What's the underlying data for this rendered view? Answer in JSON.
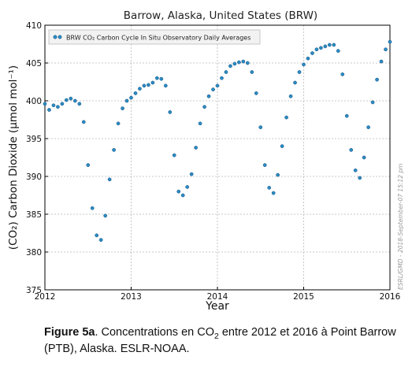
{
  "chart_data": {
    "type": "scatter",
    "title": "Barrow, Alaska, United States (BRW)",
    "xlabel": "Year",
    "ylabel": "(CO₂) Carbon Dioxide (μmol mol⁻¹)",
    "xlim": [
      2012,
      2016
    ],
    "ylim": [
      375,
      410
    ],
    "xticks": [
      "2012",
      "2013",
      "2014",
      "2015",
      "2016"
    ],
    "yticks": [
      "375",
      "380",
      "385",
      "390",
      "395",
      "400",
      "405",
      "410"
    ],
    "grid": true,
    "legend_position": "top-left",
    "series": [
      {
        "name": "BRW CO₂ Carbon Cycle In Situ Observatory Daily Averages",
        "color": "#2b8cc4",
        "points": [
          [
            2012.0,
            399.6
          ],
          [
            2012.05,
            398.8
          ],
          [
            2012.1,
            399.4
          ],
          [
            2012.15,
            399.2
          ],
          [
            2012.2,
            399.6
          ],
          [
            2012.25,
            400.1
          ],
          [
            2012.3,
            400.3
          ],
          [
            2012.35,
            400.0
          ],
          [
            2012.4,
            399.6
          ],
          [
            2012.45,
            397.2
          ],
          [
            2012.5,
            391.5
          ],
          [
            2012.55,
            385.8
          ],
          [
            2012.6,
            382.2
          ],
          [
            2012.65,
            381.6
          ],
          [
            2012.7,
            384.8
          ],
          [
            2012.75,
            389.6
          ],
          [
            2012.8,
            393.5
          ],
          [
            2012.85,
            397.0
          ],
          [
            2012.9,
            399.0
          ],
          [
            2012.95,
            400.0
          ],
          [
            2013.0,
            400.4
          ],
          [
            2013.05,
            401.0
          ],
          [
            2013.1,
            401.6
          ],
          [
            2013.15,
            402.0
          ],
          [
            2013.2,
            402.1
          ],
          [
            2013.25,
            402.4
          ],
          [
            2013.3,
            403.0
          ],
          [
            2013.35,
            402.9
          ],
          [
            2013.4,
            402.0
          ],
          [
            2013.45,
            398.5
          ],
          [
            2013.5,
            392.8
          ],
          [
            2013.55,
            388.0
          ],
          [
            2013.6,
            387.5
          ],
          [
            2013.65,
            388.6
          ],
          [
            2013.7,
            390.3
          ],
          [
            2013.75,
            393.8
          ],
          [
            2013.8,
            397.0
          ],
          [
            2013.85,
            399.2
          ],
          [
            2013.9,
            400.6
          ],
          [
            2013.95,
            401.5
          ],
          [
            2014.0,
            402.0
          ],
          [
            2014.05,
            403.0
          ],
          [
            2014.1,
            403.8
          ],
          [
            2014.15,
            404.6
          ],
          [
            2014.2,
            404.9
          ],
          [
            2014.25,
            405.1
          ],
          [
            2014.3,
            405.2
          ],
          [
            2014.35,
            405.0
          ],
          [
            2014.4,
            403.8
          ],
          [
            2014.45,
            401.0
          ],
          [
            2014.5,
            396.5
          ],
          [
            2014.55,
            391.5
          ],
          [
            2014.6,
            388.5
          ],
          [
            2014.65,
            387.8
          ],
          [
            2014.7,
            390.2
          ],
          [
            2014.75,
            394.0
          ],
          [
            2014.8,
            397.8
          ],
          [
            2014.85,
            400.6
          ],
          [
            2014.9,
            402.4
          ],
          [
            2014.95,
            403.8
          ],
          [
            2015.0,
            404.8
          ],
          [
            2015.05,
            405.6
          ],
          [
            2015.1,
            406.3
          ],
          [
            2015.15,
            406.8
          ],
          [
            2015.2,
            407.0
          ],
          [
            2015.25,
            407.2
          ],
          [
            2015.3,
            407.4
          ],
          [
            2015.35,
            407.4
          ],
          [
            2015.4,
            406.6
          ],
          [
            2015.45,
            403.5
          ],
          [
            2015.5,
            398.0
          ],
          [
            2015.55,
            393.5
          ],
          [
            2015.6,
            390.8
          ],
          [
            2015.65,
            389.8
          ],
          [
            2015.7,
            392.5
          ],
          [
            2015.75,
            396.5
          ],
          [
            2015.8,
            399.8
          ],
          [
            2015.85,
            402.8
          ],
          [
            2015.9,
            405.2
          ],
          [
            2015.95,
            406.8
          ],
          [
            2016.0,
            407.8
          ]
        ]
      }
    ],
    "side_label": "ESRL/GMD - 2018-September-07 15:12 pm"
  },
  "caption": {
    "label": "Figure 5a",
    "text_before_sub": ". Concentrations en CO",
    "sub": "2",
    "text_after_sub": " entre 2012 et 2016 à Point Barrow (PTB), Alaska. ESLR-NOAA."
  }
}
